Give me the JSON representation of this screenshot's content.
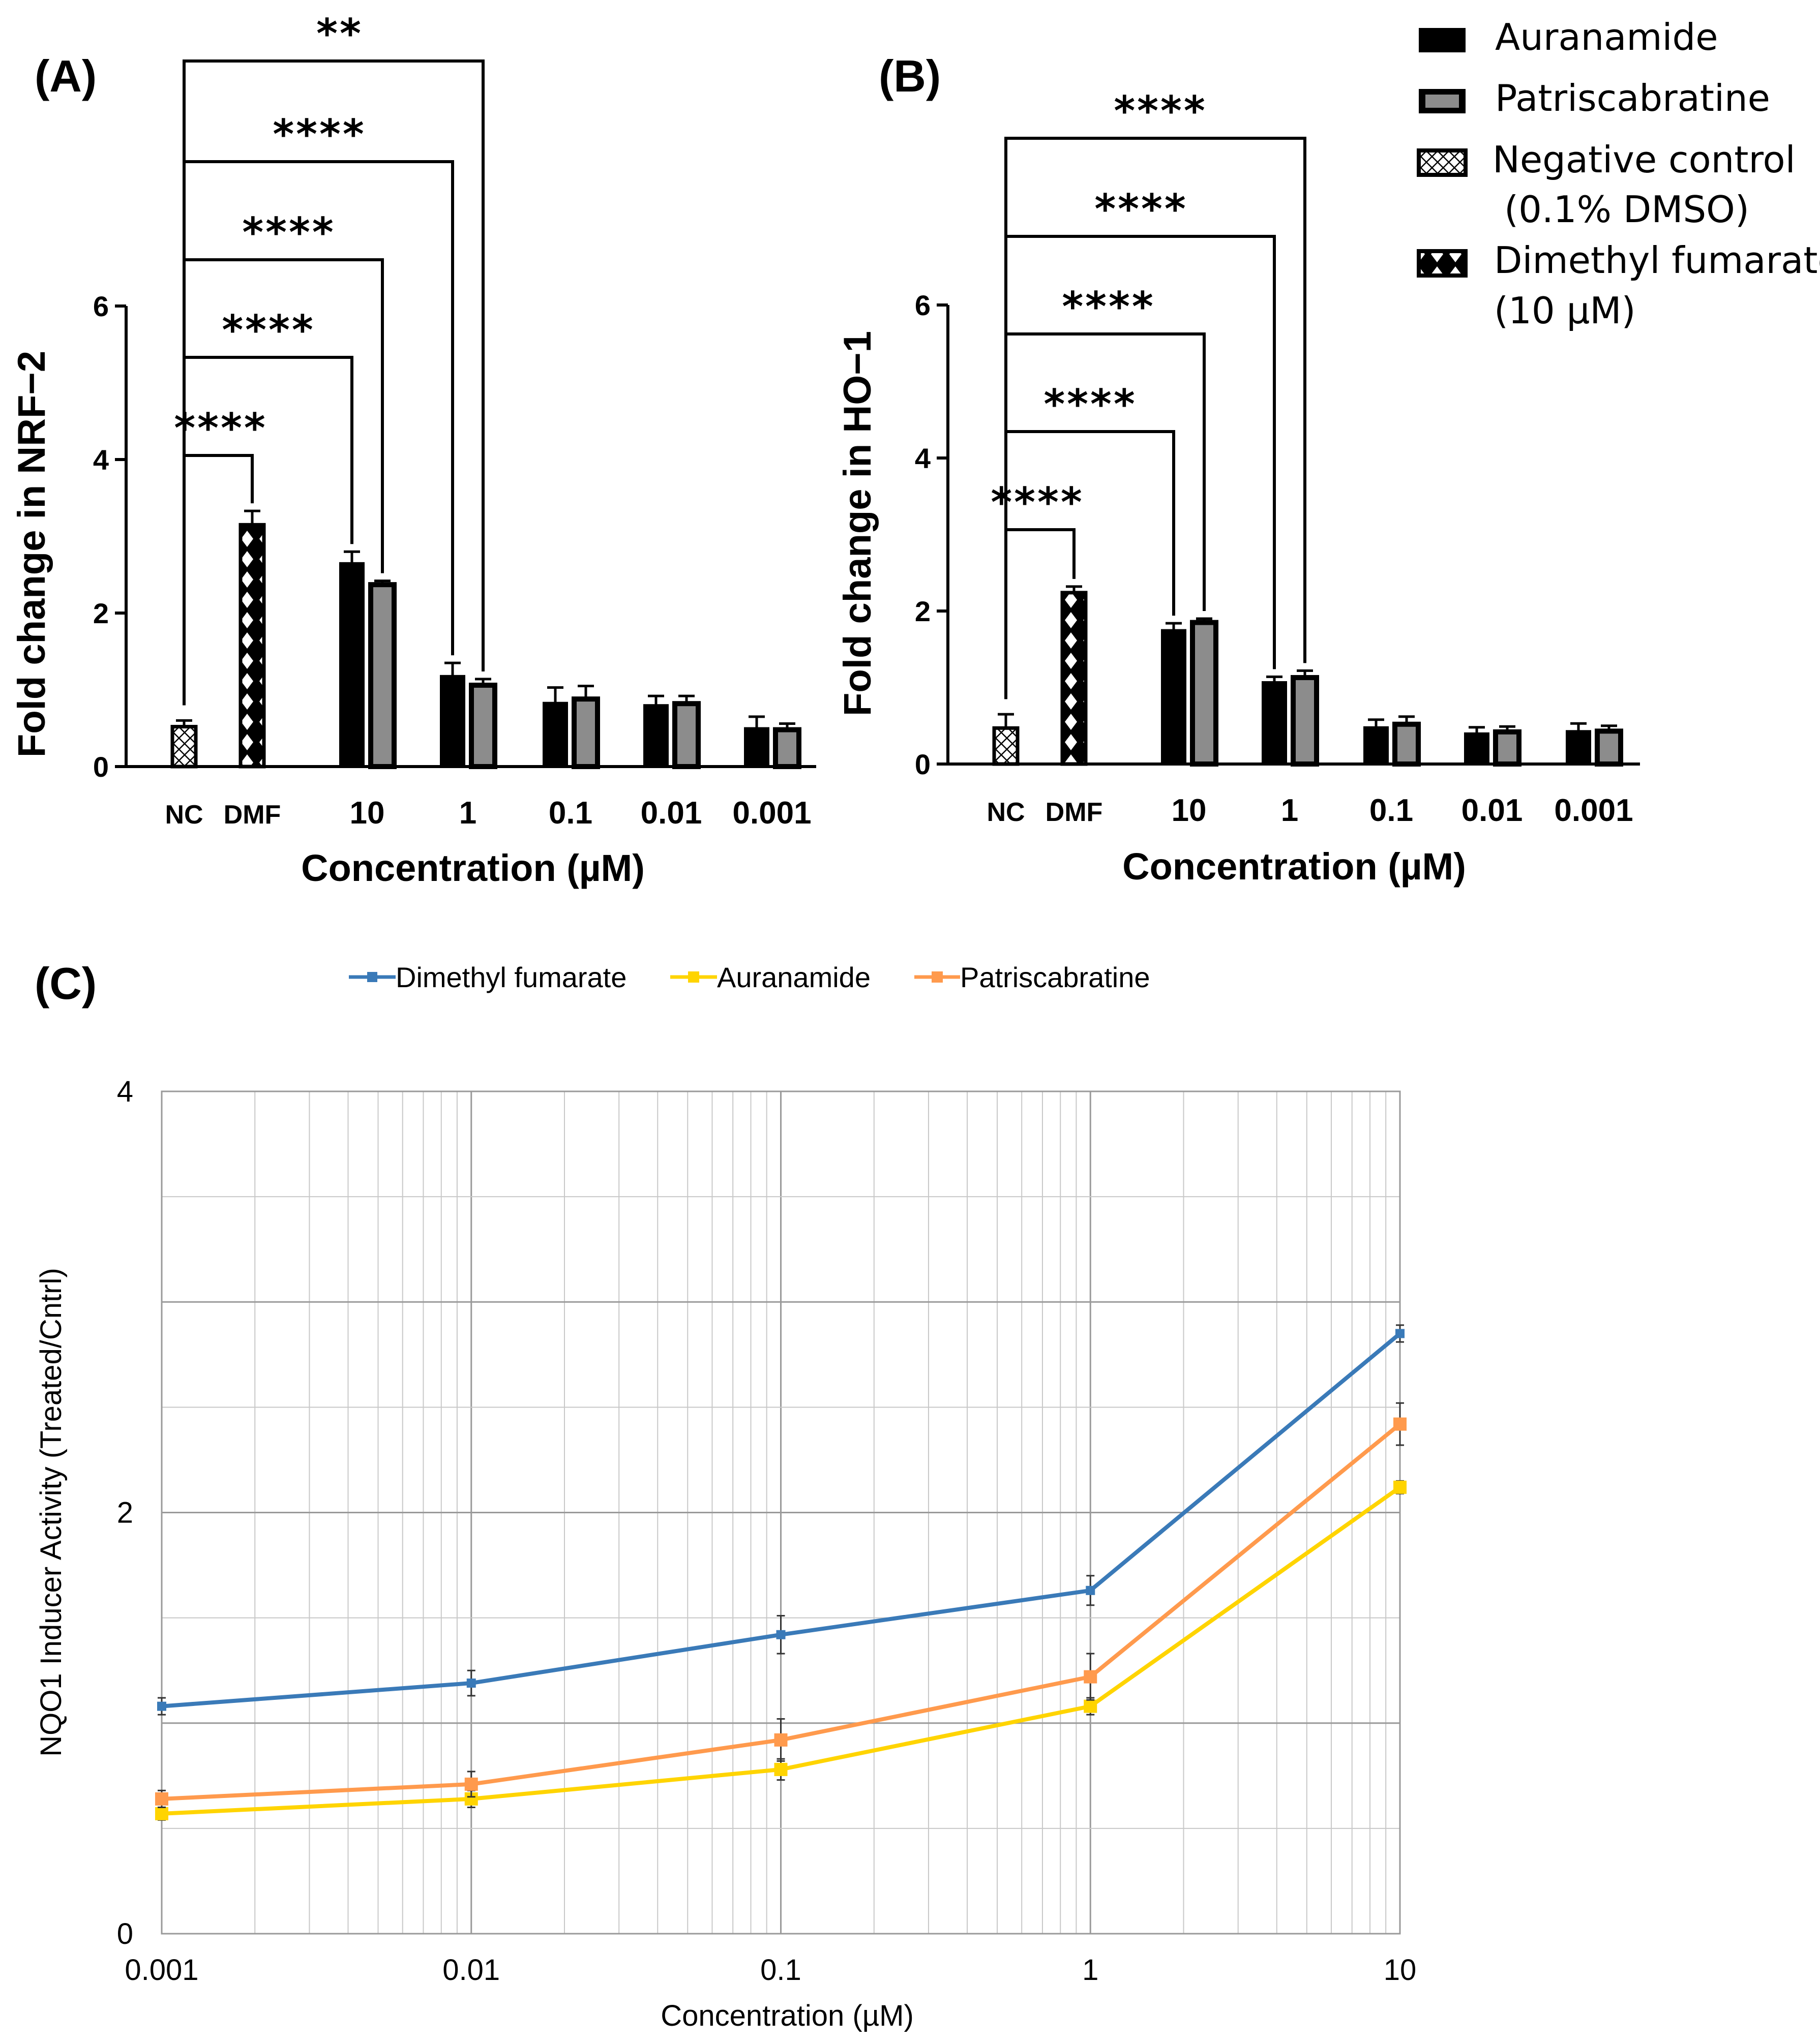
{
  "chart_data": [
    {
      "id": "A",
      "type": "bar",
      "panel_label": "(A)",
      "ylabel": "Fold change in NRF−2",
      "xlabel": "Concentration (µM)",
      "ylim": [
        0,
        6
      ],
      "yticks": [
        "0",
        "2",
        "4",
        "6"
      ],
      "control_bars": [
        {
          "label": "NC",
          "value": 0.52,
          "err": 0.08,
          "pattern": "hatch"
        },
        {
          "label": "DMF",
          "value": 3.15,
          "err": 0.18,
          "pattern": "diamond"
        }
      ],
      "categories": [
        "10",
        "1",
        "0.1",
        "0.01",
        "0.001"
      ],
      "series": [
        {
          "name": "Auranamide",
          "values": [
            2.65,
            1.18,
            0.83,
            0.8,
            0.5
          ],
          "errors": [
            0.15,
            0.17,
            0.2,
            0.12,
            0.15
          ]
        },
        {
          "name": "Patriscabratine",
          "values": [
            2.37,
            1.06,
            0.88,
            0.82,
            0.48
          ],
          "errors": [
            0.05,
            0.08,
            0.17,
            0.1,
            0.08
          ]
        }
      ],
      "significance": [
        {
          "target": "DMF",
          "stars": "****"
        },
        {
          "target": "Auranamide 10",
          "stars": "****"
        },
        {
          "target": "Patriscabratine 10",
          "stars": "****"
        },
        {
          "target": "Auranamide 1",
          "stars": "****"
        },
        {
          "target": "Patriscabratine 1",
          "stars": "**"
        }
      ]
    },
    {
      "id": "B",
      "type": "bar",
      "panel_label": "(B)",
      "ylabel": "Fold change in HO−1",
      "xlabel": "Concentration (µM)",
      "ylim": [
        0,
        6
      ],
      "yticks": [
        "0",
        "2",
        "4",
        "6"
      ],
      "control_bars": [
        {
          "label": "NC",
          "value": 0.47,
          "err": 0.18,
          "pattern": "hatch"
        },
        {
          "label": "DMF",
          "value": 2.24,
          "err": 0.08,
          "pattern": "diamond"
        }
      ],
      "categories": [
        "10",
        "1",
        "0.1",
        "0.01",
        "0.001"
      ],
      "series": [
        {
          "name": "Auranamide",
          "values": [
            1.75,
            1.07,
            0.48,
            0.4,
            0.43
          ],
          "errors": [
            0.09,
            0.07,
            0.1,
            0.08,
            0.1
          ]
        },
        {
          "name": "Patriscabratine",
          "values": [
            1.85,
            1.13,
            0.52,
            0.42,
            0.43
          ],
          "errors": [
            0.05,
            0.09,
            0.1,
            0.07,
            0.07
          ]
        }
      ],
      "significance": [
        {
          "target": "DMF",
          "stars": "****"
        },
        {
          "target": "Auranamide 10",
          "stars": "****"
        },
        {
          "target": "Patriscabratine 10",
          "stars": "****"
        },
        {
          "target": "Auranamide 1",
          "stars": "****"
        },
        {
          "target": "Patriscabratine 1",
          "stars": "****"
        }
      ]
    },
    {
      "id": "C",
      "type": "line",
      "panel_label": "(C)",
      "xscale": "log",
      "x": [
        0.001,
        0.01,
        0.1,
        1,
        10
      ],
      "xticks": [
        "0.001",
        "0.01",
        "0.1",
        "1",
        "10"
      ],
      "ylim": [
        0,
        4
      ],
      "yticks": [
        "0",
        "2",
        "4"
      ],
      "ylabel": "NQO1 Inducer Activity  (Treated/Cntrl)",
      "xlabel": "Concentration  (µM)",
      "grid": true,
      "series": [
        {
          "name": "Dimethyl fumarate",
          "values": [
            1.08,
            1.19,
            1.42,
            1.63,
            2.85
          ],
          "errors": [
            0.04,
            0.06,
            0.09,
            0.07,
            0.04
          ]
        },
        {
          "name": "Auranamide",
          "values": [
            0.57,
            0.64,
            0.78,
            1.08,
            2.12
          ],
          "errors": [
            0.03,
            0.04,
            0.05,
            0.04,
            0.03
          ]
        },
        {
          "name": "Patriscabratine",
          "values": [
            0.64,
            0.71,
            0.92,
            1.22,
            2.42
          ],
          "errors": [
            0.04,
            0.06,
            0.1,
            0.11,
            0.1
          ]
        }
      ]
    }
  ],
  "legend_ab": {
    "aur": "Auranamide",
    "pat": "Patriscabratine",
    "nc1": "Negative control",
    "nc2": "(0.1% DMSO)",
    "dmf1": "Dimethyl fumarate",
    "dmf2": "(10 µM)"
  },
  "legend_c": [
    "Dimethyl fumarate",
    "Auranamide",
    "Patriscabratine"
  ],
  "colors": {
    "auranamide_bar": "#000000",
    "patriscabratine_bar": "#8c8c8c",
    "dmf_line": "#3a7ab8",
    "auranamide_line": "#ffd400",
    "patriscabratine_line": "#ff9a4d",
    "grid": "#c8c8c8"
  }
}
